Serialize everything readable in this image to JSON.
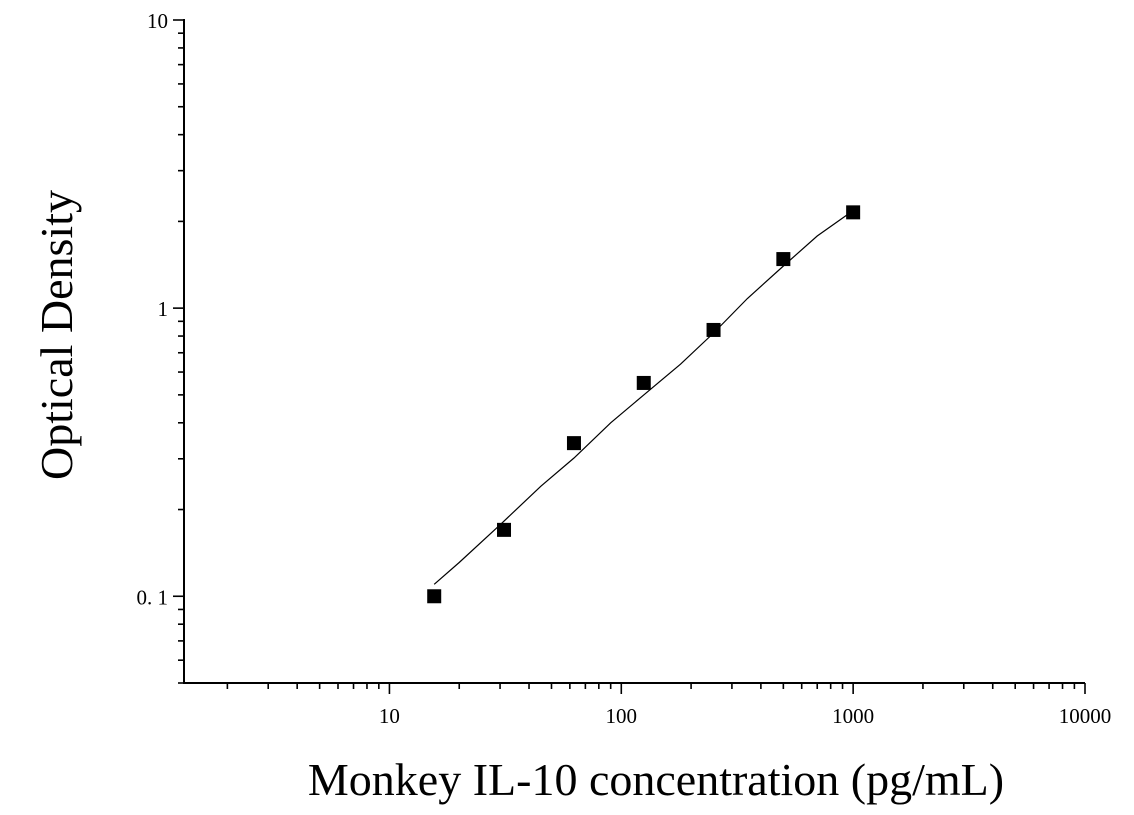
{
  "chart_data": {
    "type": "scatter",
    "title": "",
    "xlabel": "Monkey IL-10 concentration (pg/mL)",
    "ylabel": "Optical Density",
    "x_scale": "log",
    "y_scale": "log",
    "xlim": [
      1.3,
      10000
    ],
    "ylim": [
      0.05,
      10
    ],
    "x_ticks": [
      {
        "value": 10,
        "label": "10"
      },
      {
        "value": 100,
        "label": "100"
      },
      {
        "value": 1000,
        "label": "1000"
      },
      {
        "value": 10000,
        "label": "10000"
      }
    ],
    "y_ticks": [
      {
        "value": 0.1,
        "label": "0. 1"
      },
      {
        "value": 1,
        "label": "1"
      },
      {
        "value": 10,
        "label": "10"
      }
    ],
    "grid": false,
    "legend": "none",
    "series": [
      {
        "marker": "square",
        "color": "#000000",
        "x": [
          15.6,
          31.2,
          62.5,
          125,
          250,
          500,
          1000
        ],
        "y": [
          0.1,
          0.17,
          0.34,
          0.55,
          0.84,
          1.48,
          2.15
        ]
      }
    ],
    "fit_curve": {
      "color": "#000000",
      "x": [
        15.6,
        20,
        30,
        45,
        62.5,
        90,
        125,
        180,
        250,
        350,
        500,
        700,
        1000
      ],
      "y": [
        0.11,
        0.131,
        0.177,
        0.241,
        0.302,
        0.4,
        0.5,
        0.639,
        0.82,
        1.08,
        1.4,
        1.78,
        2.18
      ]
    }
  }
}
